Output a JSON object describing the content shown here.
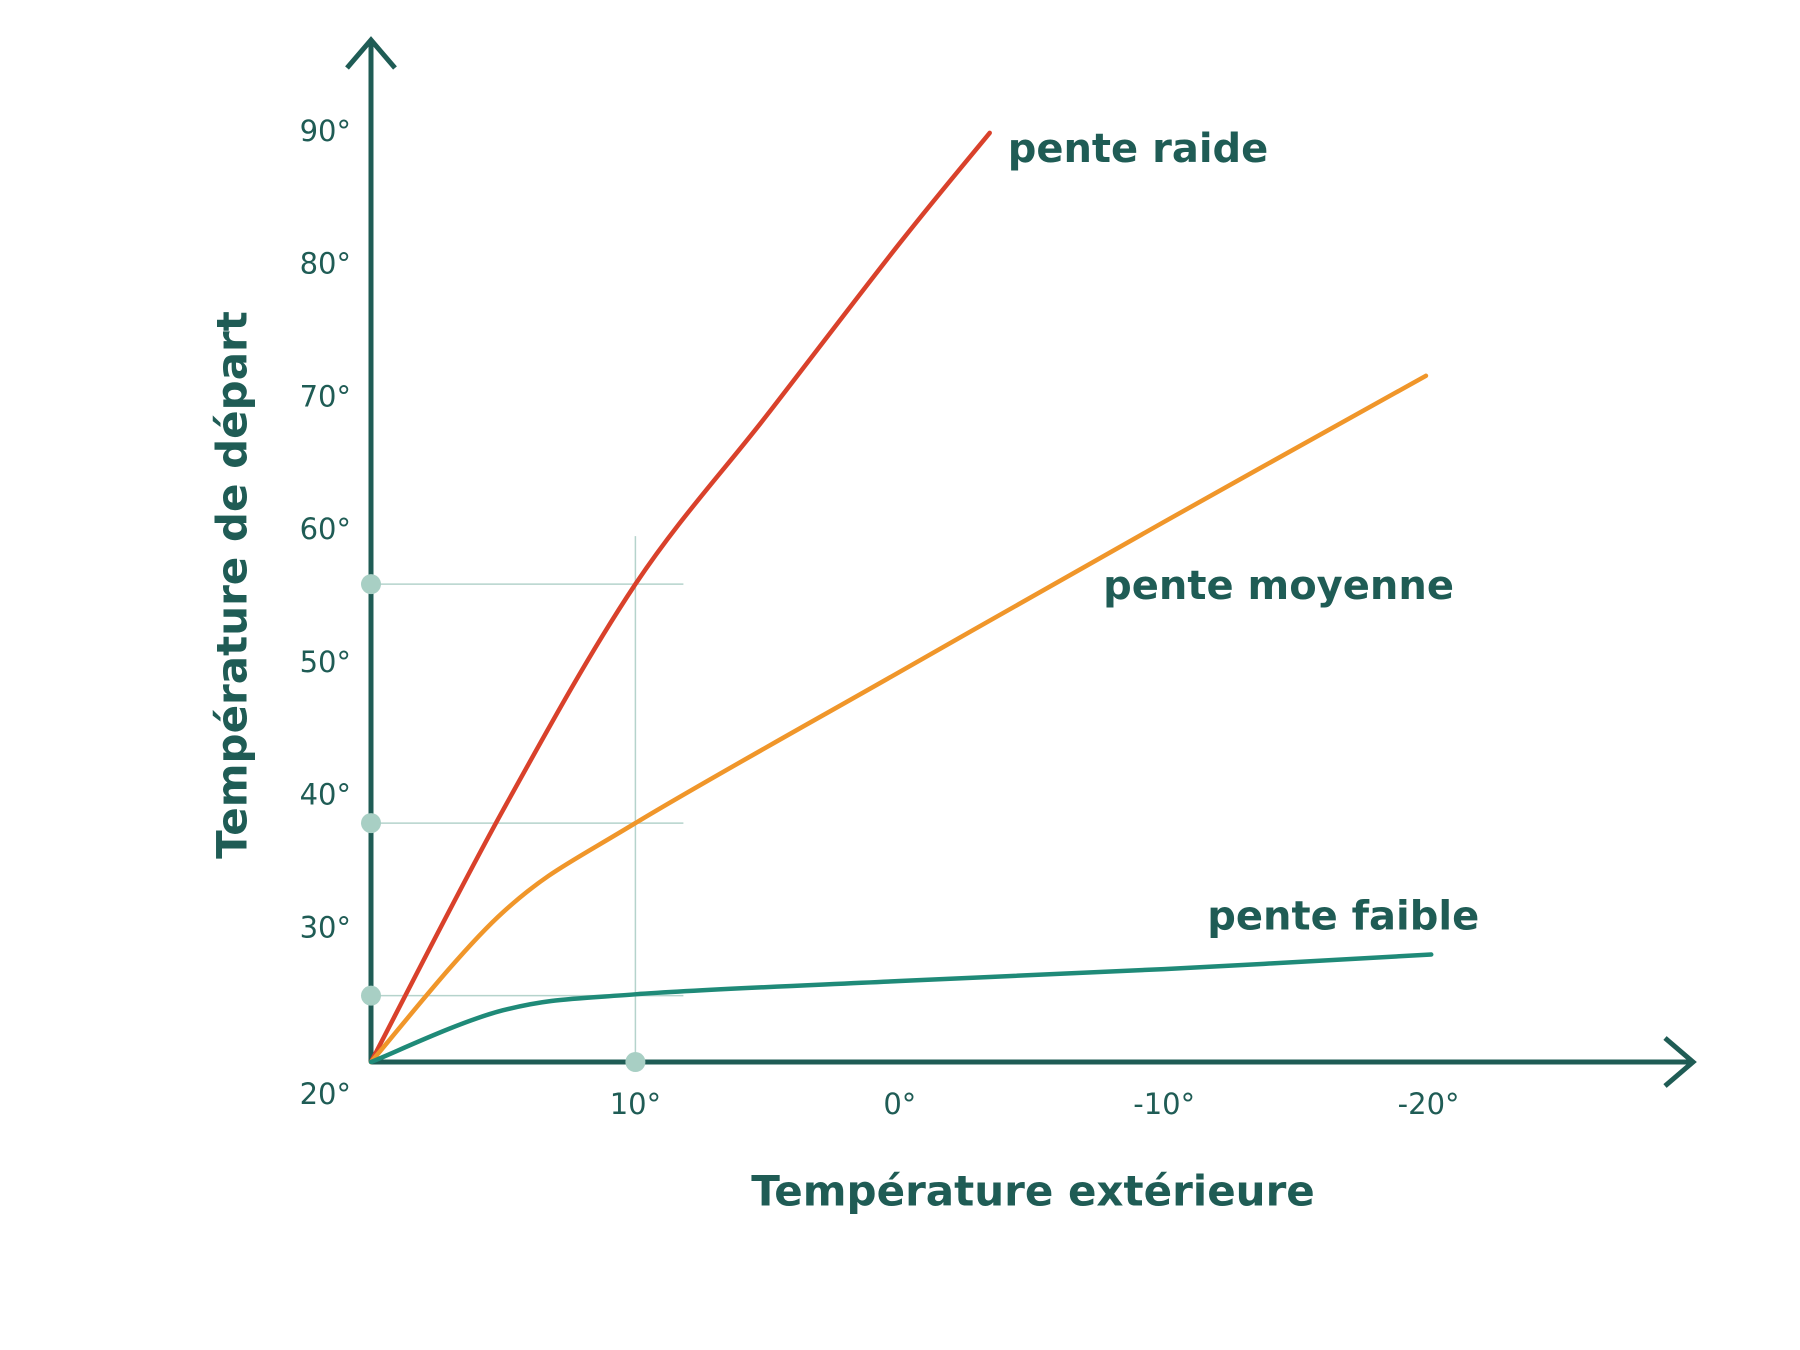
{
  "chart_data": {
    "type": "line",
    "x_label": "Température extérieure",
    "y_label": "Température de départ",
    "xlim": [
      20,
      -30
    ],
    "ylim": [
      20,
      97
    ],
    "xticks": [
      {
        "value": 10,
        "label": "10°"
      },
      {
        "value": 0,
        "label": "0°"
      },
      {
        "value": -10,
        "label": "-10°"
      },
      {
        "value": -20,
        "label": "-20°"
      }
    ],
    "yticks": [
      {
        "value": 20,
        "label": "20°"
      },
      {
        "value": 30,
        "label": "30°"
      },
      {
        "value": 40,
        "label": "40°"
      },
      {
        "value": 50,
        "label": "50°"
      },
      {
        "value": 60,
        "label": "60°"
      },
      {
        "value": 70,
        "label": "70°"
      },
      {
        "value": 80,
        "label": "80°"
      },
      {
        "value": 90,
        "label": "90°"
      }
    ],
    "series": [
      {
        "name": "pente raide",
        "color": "#d9412b",
        "x": [
          20,
          15,
          10,
          5,
          0,
          -3.4
        ],
        "values": [
          20,
          39,
          56,
          68.8,
          81.7,
          90
        ]
      },
      {
        "name": "pente moyenne",
        "color": "#f0962a",
        "x": [
          20,
          15,
          10,
          0,
          -10,
          -19.9
        ],
        "values": [
          20,
          31.3,
          38,
          49.4,
          60.7,
          71.7
        ]
      },
      {
        "name": "pente faible",
        "color": "#1f8a78",
        "x": [
          20,
          15,
          10,
          0,
          -10,
          -20.1
        ],
        "values": [
          20,
          23.9,
          25.1,
          26.1,
          27,
          28.1
        ]
      }
    ],
    "reference": {
      "x": 10,
      "y": [
        56,
        38,
        25
      ]
    }
  }
}
